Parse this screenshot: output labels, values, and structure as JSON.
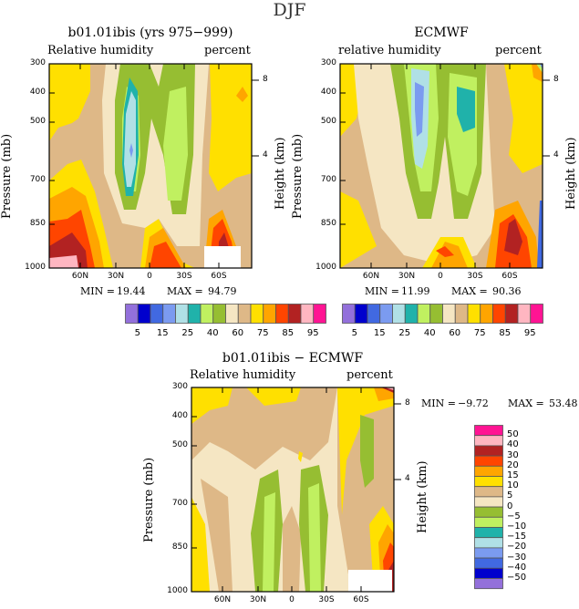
{
  "figure_title": "DJF",
  "colors": [
    "#9370DB",
    "#0000CD",
    "#4169E1",
    "#7B9BF0",
    "#B0E0E6",
    "#20B2AA",
    "#C0F060",
    "#96BE32",
    "#F5E6C3",
    "#DEB887",
    "#FFE000",
    "#FFA500",
    "#FF4500",
    "#B22222",
    "#FFB6C1",
    "#FF1493"
  ],
  "chart_data": [
    {
      "type": "heatmap",
      "title": "b01.01ibis (yrs 975−999)",
      "left_subtitle": "Relative humidity",
      "right_subtitle": "percent",
      "ylabel": "Pressure (mb)",
      "y2label": "Height (km)",
      "x_ticks": [
        "60N",
        "30N",
        "0",
        "30S",
        "60S"
      ],
      "y_ticks": [
        "300",
        "400",
        "500",
        "700",
        "850",
        "1000"
      ],
      "y2_ticks": [
        "8",
        "4"
      ],
      "min_label": "MIN =",
      "min": "19.44",
      "max_label": "MAX =",
      "max": "94.79",
      "colorbar_labels": [
        "5",
        "15",
        "25",
        "40",
        "60",
        "75",
        "85",
        "95"
      ]
    },
    {
      "type": "heatmap",
      "title": "ECMWF",
      "left_subtitle": "relative humidity",
      "right_subtitle": "percent",
      "ylabel": "Pressure (mb)",
      "y2label": "Height (km)",
      "x_ticks": [
        "60N",
        "30N",
        "0",
        "30S",
        "60S"
      ],
      "y_ticks": [
        "300",
        "400",
        "500",
        "700",
        "850",
        "1000"
      ],
      "y2_ticks": [
        "8",
        "4"
      ],
      "min_label": "MIN =",
      "min": "11.99",
      "max_label": "MAX =",
      "max": "90.36",
      "colorbar_labels": [
        "5",
        "15",
        "25",
        "40",
        "60",
        "75",
        "85",
        "95"
      ]
    },
    {
      "type": "heatmap",
      "title": "b01.01ibis − ECMWF",
      "left_subtitle": "Relative humidity",
      "right_subtitle": "percent",
      "ylabel": "Pressure (mb)",
      "y2label": "Height (km)",
      "x_ticks": [
        "60N",
        "30N",
        "0",
        "30S",
        "60S"
      ],
      "y_ticks": [
        "300",
        "400",
        "500",
        "700",
        "850",
        "1000"
      ],
      "y2_ticks": [
        "8",
        "4"
      ],
      "min_label": "MIN =",
      "min": "−9.72",
      "max_label": "MAX =",
      "max": "53.48",
      "colorbar_labels": [
        "50",
        "40",
        "30",
        "20",
        "15",
        "10",
        "5",
        "0",
        "−5",
        "−10",
        "−15",
        "−20",
        "−30",
        "−40",
        "−50"
      ]
    }
  ]
}
